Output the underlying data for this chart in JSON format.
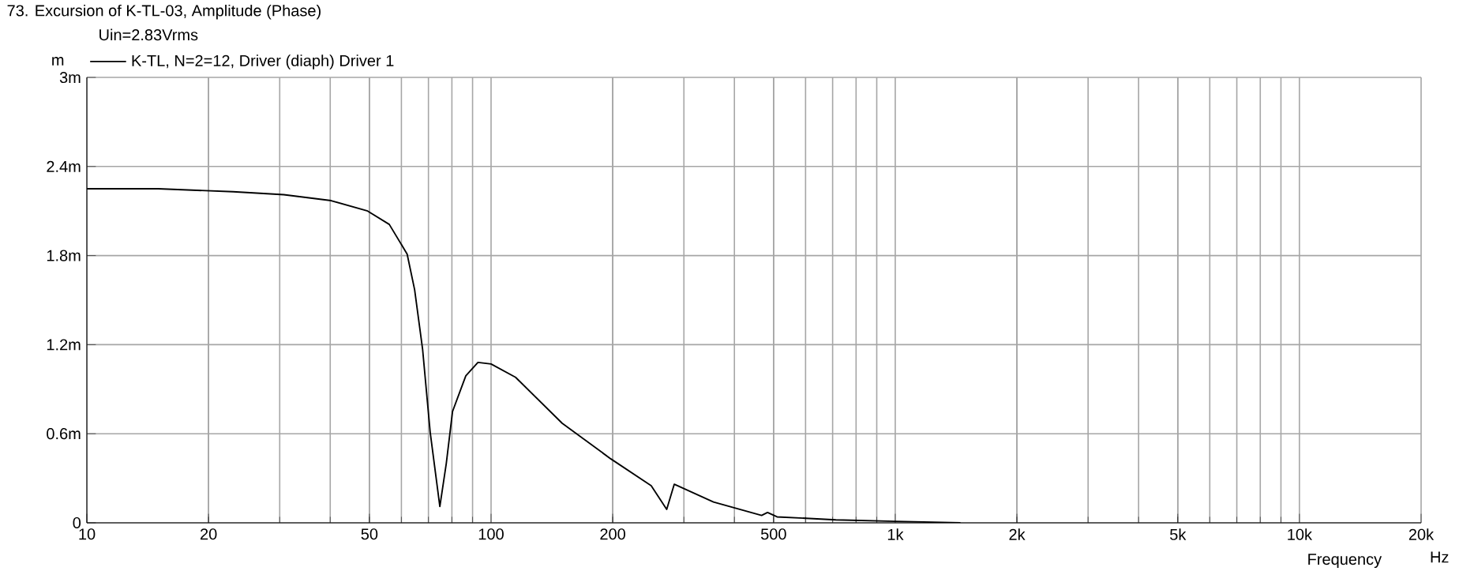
{
  "chart_data": {
    "type": "line",
    "title": "73. Excursion of K-TL-03, Amplitude (Phase)",
    "subtitle": "Uin=2.83Vrms",
    "xlabel": "Frequency",
    "ylabel": "m",
    "annotations": [
      "Hz"
    ],
    "log": "x",
    "grid": true,
    "legend": "top left",
    "marker": "none",
    "line_style": "solid",
    "xlim": [
      10,
      20000
    ],
    "ylim": [
      0,
      3
    ],
    "xticks": [
      10,
      20,
      50,
      100,
      200,
      500,
      {
        "value": 1000,
        "label": "1k"
      },
      {
        "value": 2000,
        "label": "2k"
      },
      {
        "value": 5000,
        "label": "5k"
      },
      {
        "value": 10000,
        "label": "10k"
      },
      {
        "value": 20000,
        "label": "20k"
      }
    ],
    "yticks": [
      0,
      {
        "value": 0.6,
        "label": "0.6m"
      },
      {
        "value": 1.2,
        "label": "1.2m"
      },
      {
        "value": 1.8,
        "label": "1.8m"
      },
      {
        "value": 2.4,
        "label": "2.4m"
      },
      {
        "value": 3,
        "label": "3m"
      }
    ],
    "series": [
      {
        "name": "K-TL, N=2=12, Driver (diaph) Driver 1",
        "color": "#000000",
        "x": [
          10,
          15,
          23,
          30.7,
          40.2,
          49.5,
          56,
          62,
          64.7,
          67.7,
          70.7,
          74.7,
          77.5,
          80.3,
          86.6,
          92.8,
          100,
          115,
          150,
          198,
          249,
          272,
          284,
          355,
          467,
          483,
          510,
          713,
          1000,
          1450
        ],
        "values": [
          2.25,
          2.25,
          2.23,
          2.21,
          2.17,
          2.1,
          2.01,
          1.81,
          1.57,
          1.17,
          0.61,
          0.11,
          0.4,
          0.75,
          0.99,
          1.08,
          1.07,
          0.98,
          0.67,
          0.43,
          0.25,
          0.09,
          0.26,
          0.14,
          0.05,
          0.07,
          0.04,
          0.02,
          0.01,
          0.0
        ]
      }
    ]
  }
}
